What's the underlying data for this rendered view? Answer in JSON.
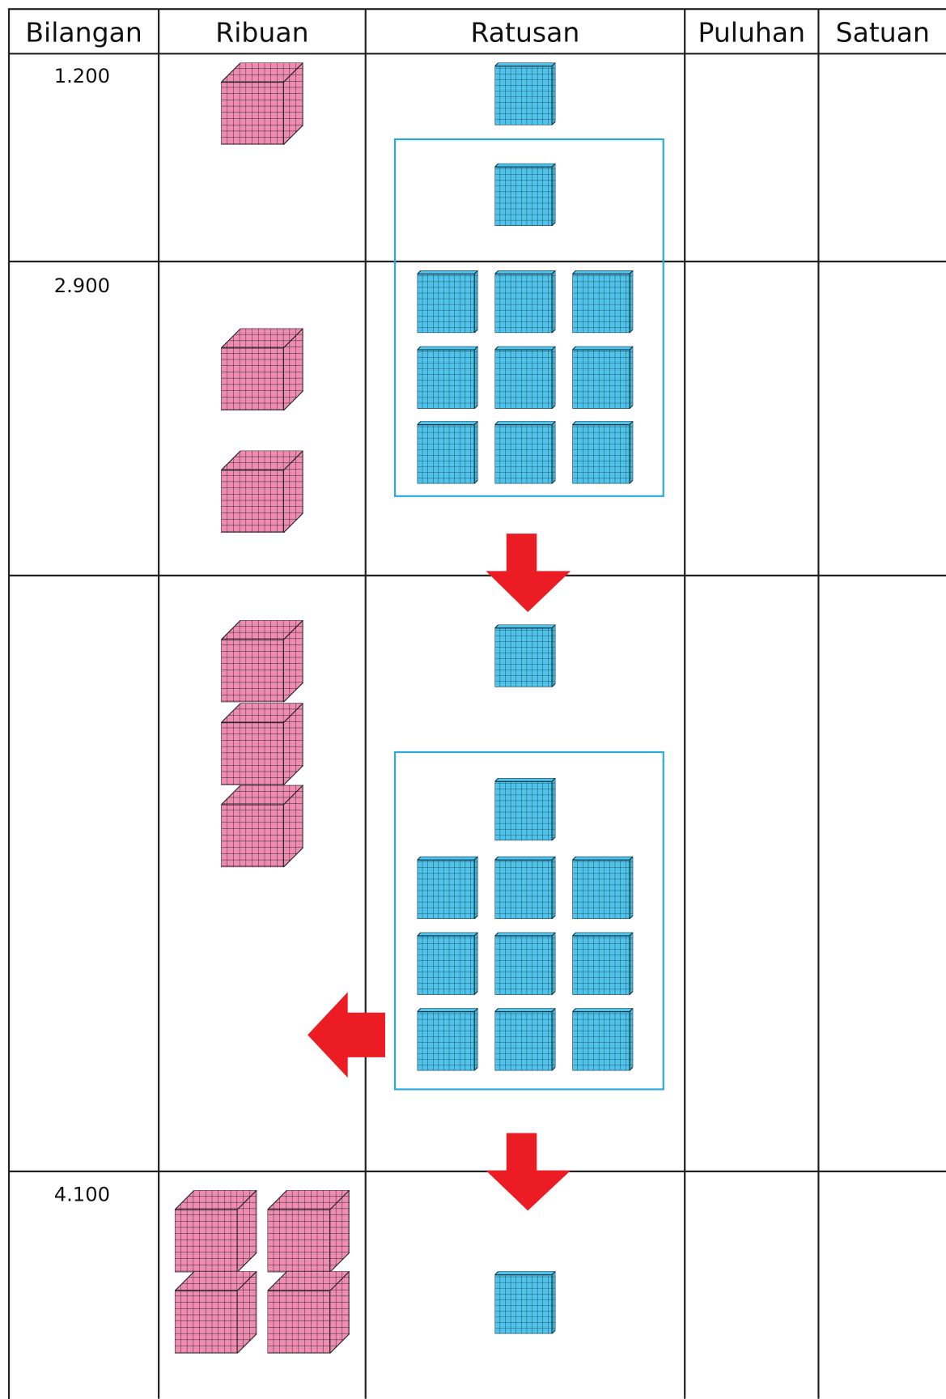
{
  "table": {
    "headers": [
      "Bilangan",
      "Ribuan",
      "Ratusan",
      "Puluhan",
      "Satuan"
    ],
    "rows": [
      {
        "number": "1.200"
      },
      {
        "number": "2.900"
      },
      {},
      {
        "number": "4.100"
      }
    ]
  }
}
